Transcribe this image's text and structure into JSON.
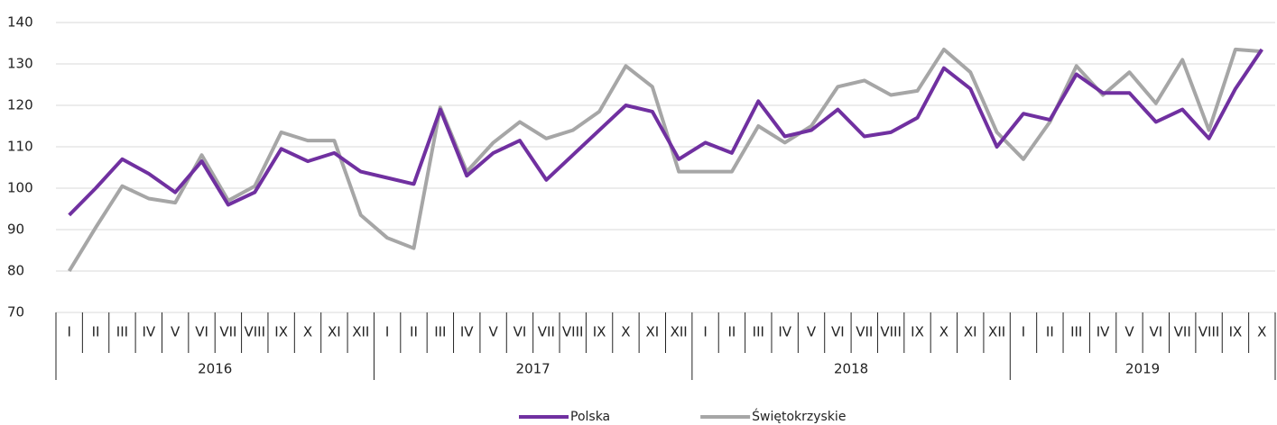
{
  "chart_data": {
    "type": "line",
    "categories": [
      "I",
      "II",
      "III",
      "IV",
      "V",
      "VI",
      "VII",
      "VIII",
      "IX",
      "X",
      "XI",
      "XII",
      "I",
      "II",
      "III",
      "IV",
      "V",
      "VI",
      "VII",
      "VIII",
      "IX",
      "X",
      "XI",
      "XII",
      "I",
      "II",
      "III",
      "IV",
      "V",
      "VI",
      "VII",
      "VIII",
      "IX",
      "X",
      "XI",
      "XII",
      "I",
      "II",
      "III",
      "IV",
      "V",
      "VI",
      "VII",
      "VIII",
      "IX",
      "X"
    ],
    "year_labels": [
      "2016",
      "2017",
      "2018",
      "2019"
    ],
    "series": [
      {
        "name": "Polska",
        "color": "#7030a0",
        "values": [
          93.5,
          100,
          107,
          103.5,
          99,
          106.5,
          96,
          99,
          109.5,
          106.5,
          108.5,
          104,
          102.5,
          101,
          119,
          103,
          108.5,
          111.5,
          102,
          108,
          114,
          120,
          118.5,
          107,
          111,
          108.5,
          121,
          112.5,
          114,
          119,
          112.5,
          113.5,
          117,
          129,
          124,
          110,
          118,
          116.5,
          127.5,
          123,
          123,
          116,
          119,
          112,
          124,
          133.5
        ]
      },
      {
        "name": "Świętokrzyskie",
        "color": "#a6a6a6",
        "values": [
          80,
          90.5,
          100.5,
          97.5,
          96.5,
          108,
          97,
          100.5,
          113.5,
          111.5,
          111.5,
          93.5,
          88,
          85.5,
          119.5,
          104,
          111,
          116,
          112,
          114,
          118.5,
          129.5,
          124.5,
          104,
          104,
          104,
          115,
          111,
          115,
          124.5,
          126,
          122.5,
          123.5,
          133.5,
          128,
          113.5,
          107,
          116,
          129.5,
          122.5,
          128,
          120.5,
          131,
          114,
          133.5,
          133
        ]
      }
    ],
    "ylim": [
      70,
      140
    ],
    "yticks": [
      70,
      80,
      90,
      100,
      110,
      120,
      130,
      140
    ],
    "grid": true,
    "legend": "bottom"
  }
}
